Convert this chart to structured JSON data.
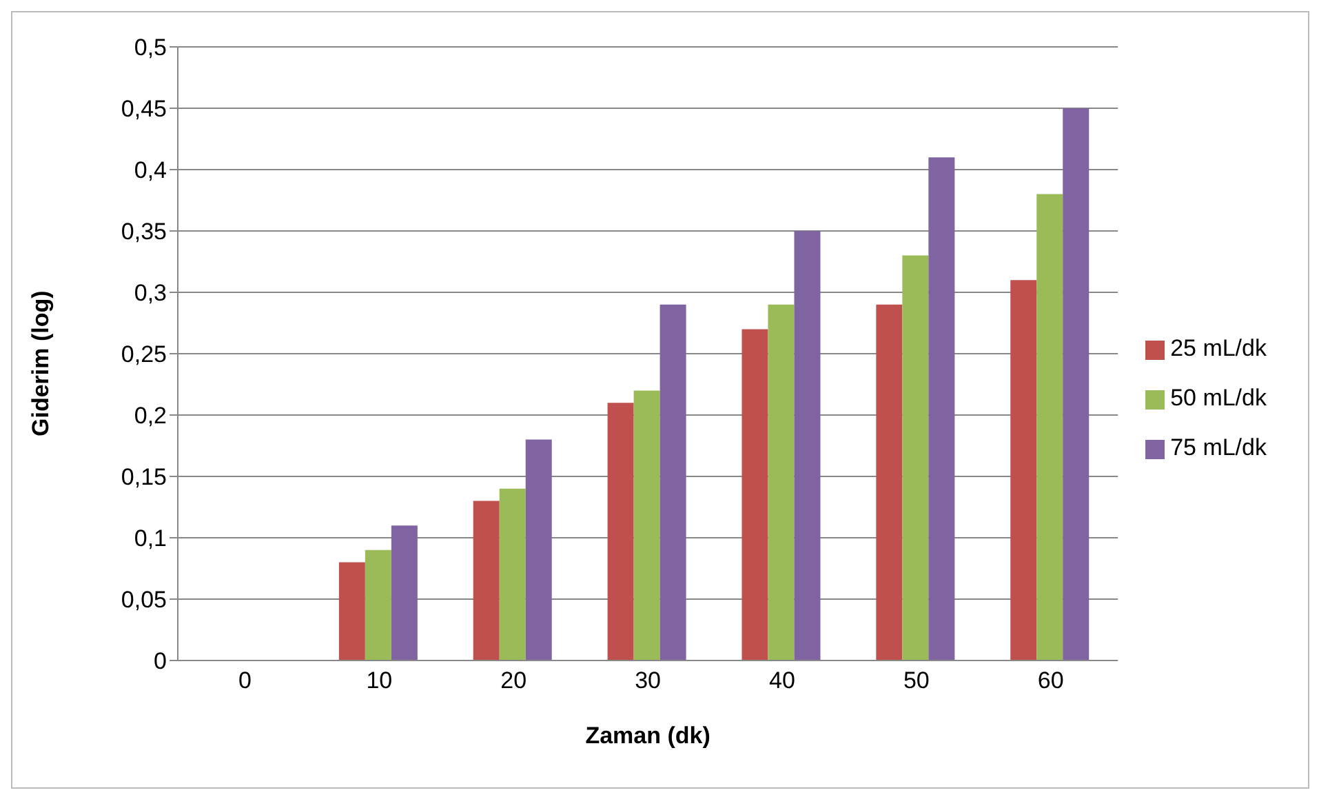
{
  "chart_data": {
    "type": "bar",
    "xlabel": "Zaman (dk)",
    "ylabel": "Giderim (log)",
    "categories": [
      "0",
      "10",
      "20",
      "30",
      "40",
      "50",
      "60"
    ],
    "series": [
      {
        "name": "25 mL/dk",
        "color": "#c0504d",
        "values": [
          0,
          0.08,
          0.13,
          0.21,
          0.27,
          0.29,
          0.31
        ]
      },
      {
        "name": "50 mL/dk",
        "color": "#9bbb59",
        "values": [
          0,
          0.09,
          0.14,
          0.22,
          0.29,
          0.33,
          0.38
        ]
      },
      {
        "name": "75 mL/dk",
        "color": "#8064a2",
        "values": [
          0,
          0.11,
          0.18,
          0.29,
          0.35,
          0.41,
          0.45
        ]
      }
    ],
    "ylim": [
      0,
      0.5
    ],
    "yticks": [
      {
        "value": 0,
        "label": "0"
      },
      {
        "value": 0.05,
        "label": "0,05"
      },
      {
        "value": 0.1,
        "label": "0,1"
      },
      {
        "value": 0.15,
        "label": "0,15"
      },
      {
        "value": 0.2,
        "label": "0,2"
      },
      {
        "value": 0.25,
        "label": "0,25"
      },
      {
        "value": 0.3,
        "label": "0,3"
      },
      {
        "value": 0.35,
        "label": "0,35"
      },
      {
        "value": 0.4,
        "label": "0,4"
      },
      {
        "value": 0.45,
        "label": "0,45"
      },
      {
        "value": 0.5,
        "label": "0,5"
      }
    ],
    "grid": "y",
    "legend": "right"
  }
}
